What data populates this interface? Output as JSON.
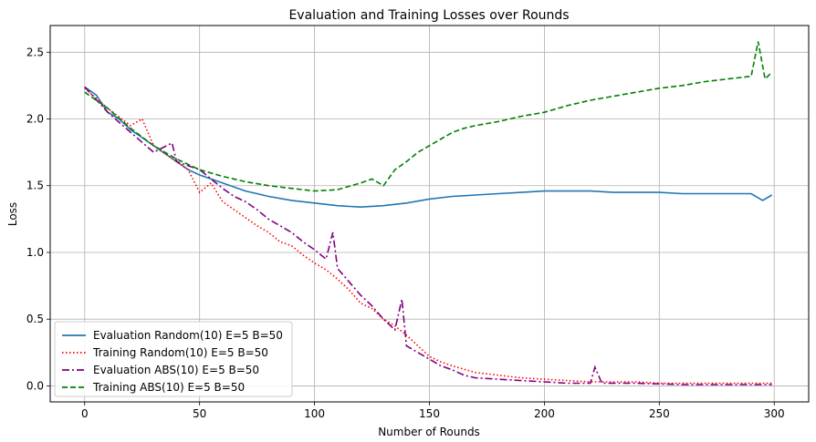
{
  "chart_data": {
    "type": "line",
    "title": "Evaluation and Training Losses over Rounds",
    "xlabel": "Number of Rounds",
    "ylabel": "Loss",
    "xlim": [
      -15,
      315
    ],
    "ylim": [
      -0.12,
      2.7
    ],
    "xticks": [
      0,
      50,
      100,
      150,
      200,
      250,
      300
    ],
    "yticks": [
      0.0,
      0.5,
      1.0,
      1.5,
      2.0,
      2.5
    ],
    "grid": true,
    "legend_position": "lower-left",
    "series": [
      {
        "name": "Evaluation Random(10) E=5 B=50",
        "color": "#1f77b4",
        "style": "solid",
        "points": [
          [
            0,
            2.24
          ],
          [
            5,
            2.18
          ],
          [
            10,
            2.05
          ],
          [
            15,
            2.0
          ],
          [
            20,
            1.92
          ],
          [
            25,
            1.86
          ],
          [
            30,
            1.8
          ],
          [
            35,
            1.74
          ],
          [
            40,
            1.68
          ],
          [
            45,
            1.62
          ],
          [
            50,
            1.58
          ],
          [
            55,
            1.55
          ],
          [
            60,
            1.52
          ],
          [
            65,
            1.49
          ],
          [
            70,
            1.46
          ],
          [
            75,
            1.44
          ],
          [
            80,
            1.42
          ],
          [
            90,
            1.39
          ],
          [
            100,
            1.37
          ],
          [
            110,
            1.35
          ],
          [
            120,
            1.34
          ],
          [
            130,
            1.35
          ],
          [
            140,
            1.37
          ],
          [
            150,
            1.4
          ],
          [
            160,
            1.42
          ],
          [
            170,
            1.43
          ],
          [
            180,
            1.44
          ],
          [
            190,
            1.45
          ],
          [
            200,
            1.46
          ],
          [
            210,
            1.46
          ],
          [
            220,
            1.46
          ],
          [
            230,
            1.45
          ],
          [
            240,
            1.45
          ],
          [
            250,
            1.45
          ],
          [
            260,
            1.44
          ],
          [
            270,
            1.44
          ],
          [
            280,
            1.44
          ],
          [
            290,
            1.44
          ],
          [
            295,
            1.39
          ],
          [
            299,
            1.43
          ]
        ]
      },
      {
        "name": "Training Random(10) E=5 B=50",
        "color": "#ff0000",
        "style": "dotted",
        "points": [
          [
            0,
            2.23
          ],
          [
            10,
            2.08
          ],
          [
            20,
            1.95
          ],
          [
            25,
            2.0
          ],
          [
            30,
            1.8
          ],
          [
            40,
            1.68
          ],
          [
            45,
            1.62
          ],
          [
            50,
            1.45
          ],
          [
            55,
            1.52
          ],
          [
            60,
            1.38
          ],
          [
            65,
            1.32
          ],
          [
            70,
            1.26
          ],
          [
            75,
            1.2
          ],
          [
            80,
            1.15
          ],
          [
            85,
            1.08
          ],
          [
            90,
            1.05
          ],
          [
            95,
            0.98
          ],
          [
            100,
            0.92
          ],
          [
            105,
            0.87
          ],
          [
            110,
            0.8
          ],
          [
            115,
            0.72
          ],
          [
            120,
            0.62
          ],
          [
            125,
            0.58
          ],
          [
            130,
            0.5
          ],
          [
            135,
            0.45
          ],
          [
            140,
            0.38
          ],
          [
            145,
            0.3
          ],
          [
            150,
            0.22
          ],
          [
            155,
            0.18
          ],
          [
            160,
            0.15
          ],
          [
            170,
            0.1
          ],
          [
            180,
            0.08
          ],
          [
            190,
            0.06
          ],
          [
            200,
            0.05
          ],
          [
            210,
            0.04
          ],
          [
            220,
            0.03
          ],
          [
            230,
            0.03
          ],
          [
            240,
            0.03
          ],
          [
            250,
            0.02
          ],
          [
            260,
            0.02
          ],
          [
            270,
            0.02
          ],
          [
            280,
            0.02
          ],
          [
            290,
            0.02
          ],
          [
            299,
            0.02
          ]
        ]
      },
      {
        "name": "Evaluation ABS(10) E=5 B=50",
        "color": "#800080",
        "style": "dashdot",
        "points": [
          [
            0,
            2.24
          ],
          [
            10,
            2.05
          ],
          [
            20,
            1.9
          ],
          [
            30,
            1.75
          ],
          [
            38,
            1.82
          ],
          [
            40,
            1.68
          ],
          [
            50,
            1.62
          ],
          [
            55,
            1.55
          ],
          [
            60,
            1.48
          ],
          [
            65,
            1.42
          ],
          [
            70,
            1.38
          ],
          [
            75,
            1.32
          ],
          [
            80,
            1.25
          ],
          [
            85,
            1.2
          ],
          [
            90,
            1.15
          ],
          [
            95,
            1.08
          ],
          [
            100,
            1.02
          ],
          [
            105,
            0.95
          ],
          [
            108,
            1.15
          ],
          [
            110,
            0.88
          ],
          [
            115,
            0.78
          ],
          [
            120,
            0.68
          ],
          [
            125,
            0.6
          ],
          [
            130,
            0.5
          ],
          [
            135,
            0.42
          ],
          [
            138,
            0.65
          ],
          [
            140,
            0.3
          ],
          [
            145,
            0.25
          ],
          [
            150,
            0.2
          ],
          [
            155,
            0.15
          ],
          [
            160,
            0.12
          ],
          [
            165,
            0.08
          ],
          [
            170,
            0.06
          ],
          [
            180,
            0.05
          ],
          [
            190,
            0.04
          ],
          [
            200,
            0.03
          ],
          [
            210,
            0.02
          ],
          [
            220,
            0.02
          ],
          [
            222,
            0.14
          ],
          [
            225,
            0.02
          ],
          [
            240,
            0.02
          ],
          [
            260,
            0.01
          ],
          [
            280,
            0.01
          ],
          [
            299,
            0.01
          ]
        ]
      },
      {
        "name": "Training ABS(10) E=5 B=50",
        "color": "#008000",
        "style": "dashed",
        "points": [
          [
            0,
            2.2
          ],
          [
            10,
            2.08
          ],
          [
            20,
            1.93
          ],
          [
            30,
            1.8
          ],
          [
            40,
            1.7
          ],
          [
            50,
            1.62
          ],
          [
            60,
            1.57
          ],
          [
            70,
            1.53
          ],
          [
            80,
            1.5
          ],
          [
            90,
            1.48
          ],
          [
            100,
            1.46
          ],
          [
            110,
            1.47
          ],
          [
            120,
            1.52
          ],
          [
            125,
            1.55
          ],
          [
            130,
            1.5
          ],
          [
            135,
            1.62
          ],
          [
            140,
            1.68
          ],
          [
            145,
            1.75
          ],
          [
            150,
            1.8
          ],
          [
            155,
            1.85
          ],
          [
            160,
            1.9
          ],
          [
            165,
            1.93
          ],
          [
            170,
            1.95
          ],
          [
            180,
            1.98
          ],
          [
            190,
            2.02
          ],
          [
            200,
            2.05
          ],
          [
            210,
            2.1
          ],
          [
            220,
            2.14
          ],
          [
            230,
            2.17
          ],
          [
            240,
            2.2
          ],
          [
            250,
            2.23
          ],
          [
            260,
            2.25
          ],
          [
            270,
            2.28
          ],
          [
            280,
            2.3
          ],
          [
            290,
            2.32
          ],
          [
            293,
            2.58
          ],
          [
            296,
            2.3
          ],
          [
            299,
            2.35
          ]
        ]
      }
    ]
  }
}
